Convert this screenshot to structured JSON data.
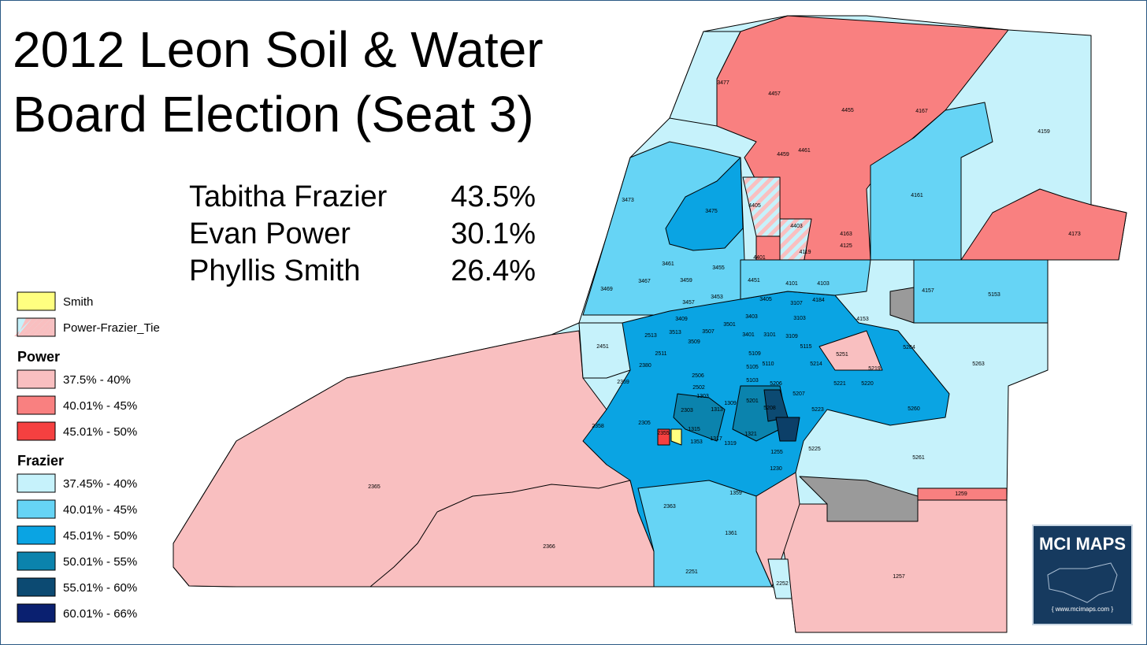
{
  "title": [
    "2012 Leon Soil & Water",
    "Board Election (Seat 3)"
  ],
  "results": [
    {
      "candidate": "Tabitha Frazier",
      "share": "43.5%"
    },
    {
      "candidate": "Evan Power",
      "share": "30.1%"
    },
    {
      "candidate": "Phyllis Smith",
      "share": "26.4%"
    }
  ],
  "legend": {
    "items": [
      {
        "label": "Smith",
        "colors": [
          "#ffff80"
        ]
      },
      {
        "label": "Power-Frazier_Tie",
        "colors": [
          "#c6f2fb",
          "#f9bfc0"
        ]
      }
    ],
    "sections": [
      {
        "heading": "Power",
        "items": [
          {
            "label": "37.5% - 40%",
            "color": "#f9bfc0"
          },
          {
            "label": "40.01% - 45%",
            "color": "#f98080"
          },
          {
            "label": "45.01% - 50%",
            "color": "#f54040"
          }
        ]
      },
      {
        "heading": "Frazier",
        "items": [
          {
            "label": "37.45% - 40%",
            "color": "#c6f2fb"
          },
          {
            "label": "40.01% - 45%",
            "color": "#66d4f5"
          },
          {
            "label": "45.01% - 50%",
            "color": "#0aa4e3"
          },
          {
            "label": "50.01% - 55%",
            "color": "#0b83ad"
          },
          {
            "label": "55.01% - 60%",
            "color": "#0c4a72"
          },
          {
            "label": "60.01% - 66%",
            "color": "#0a2070"
          }
        ]
      }
    ]
  },
  "precincts": [
    "3477",
    "4457",
    "4455",
    "4167",
    "4159",
    "4459",
    "4461",
    "3473",
    "3475",
    "4405",
    "4161",
    "4403",
    "4163",
    "4173",
    "4401",
    "4119",
    "4125",
    "3461",
    "3455",
    "3467",
    "3459",
    "3469",
    "4451",
    "4101",
    "4103",
    "4157",
    "5153",
    "3457",
    "3453",
    "3107",
    "4184",
    "3403",
    "3405",
    "3103",
    "4153",
    "3501",
    "3409",
    "3513",
    "3507",
    "2513",
    "2451",
    "3509",
    "3401",
    "3101",
    "3109",
    "5284",
    "5115",
    "5251",
    "5263",
    "2511",
    "2380",
    "5109",
    "5105",
    "5214",
    "5219",
    "5110",
    "2359",
    "2506",
    "5103",
    "5221",
    "5220",
    "2502",
    "1303",
    "5206",
    "5207",
    "5201",
    "2303",
    "1313",
    "5260",
    "5223",
    "2358",
    "2305",
    "1315",
    "2355",
    "1321",
    "1353",
    "1317",
    "1319",
    "5225",
    "1255",
    "5261",
    "1230",
    "2365",
    "1359",
    "1259",
    "2363",
    "1361",
    "2366",
    "1257",
    "2251",
    "2252",
    "1309",
    "5208"
  ],
  "logo": {
    "name": "MCI MAPS",
    "url": "{ www.mcimaps.com }"
  }
}
